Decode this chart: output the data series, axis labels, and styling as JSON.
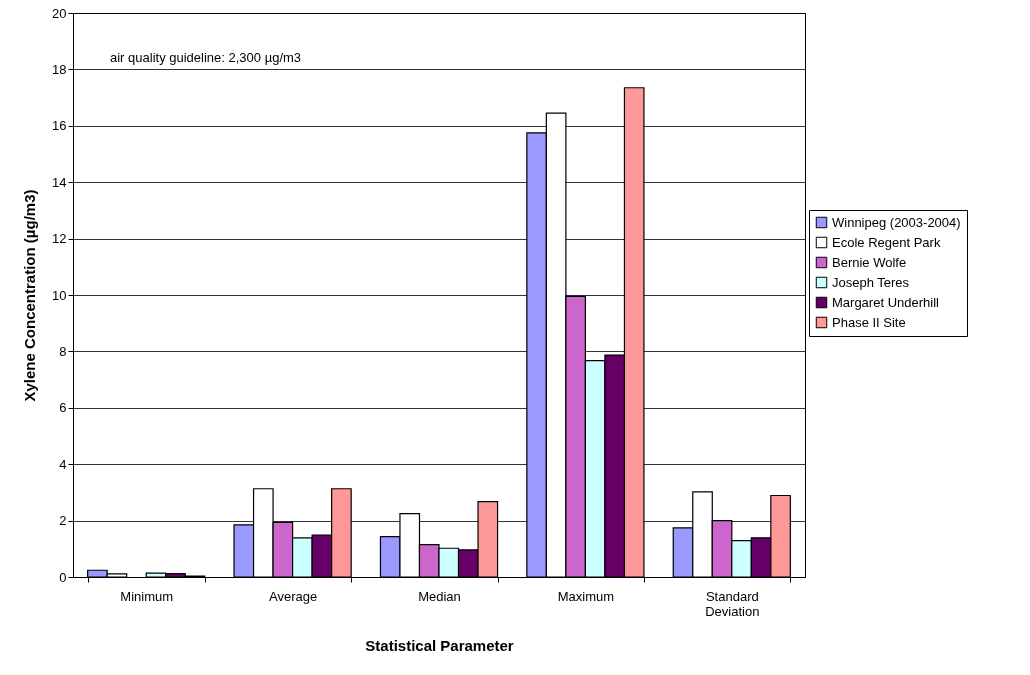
{
  "chart_data": {
    "type": "bar",
    "xlabel": "Statistical Parameter",
    "ylabel": "Xylene Concentration (µg/m3)",
    "categories": [
      "Minimum",
      "Average",
      "Median",
      "Maximum",
      "Standard Deviation"
    ],
    "series": [
      {
        "name": "Winnipeg (2003-2004)",
        "color": "#9999ff",
        "values": [
          0.24,
          1.85,
          1.43,
          15.75,
          1.74
        ]
      },
      {
        "name": "Ecole Regent Park",
        "color": "#ffffff",
        "values": [
          0.11,
          3.13,
          2.25,
          16.45,
          3.02
        ]
      },
      {
        "name": "Bernie Wolfe",
        "color": "#cc66cc",
        "values": [
          null,
          1.94,
          1.15,
          9.95,
          2.0
        ]
      },
      {
        "name": "Joseph Teres",
        "color": "#ccffff",
        "values": [
          0.14,
          1.39,
          1.02,
          7.67,
          1.29
        ]
      },
      {
        "name": "Margaret Underhill",
        "color": "#660066",
        "values": [
          0.12,
          1.49,
          0.96,
          7.87,
          1.39
        ]
      },
      {
        "name": "Phase II Site",
        "color": "#ff9999",
        "values": [
          0.03,
          3.13,
          2.67,
          17.35,
          2.89
        ]
      }
    ],
    "ylim": [
      0,
      20
    ],
    "yticks": [
      0,
      2,
      4,
      6,
      8,
      10,
      12,
      14,
      16,
      18,
      20
    ],
    "grid": "y",
    "legend": "right",
    "annotations": [
      "air quality guideline: 2,300 µg/m3"
    ]
  }
}
